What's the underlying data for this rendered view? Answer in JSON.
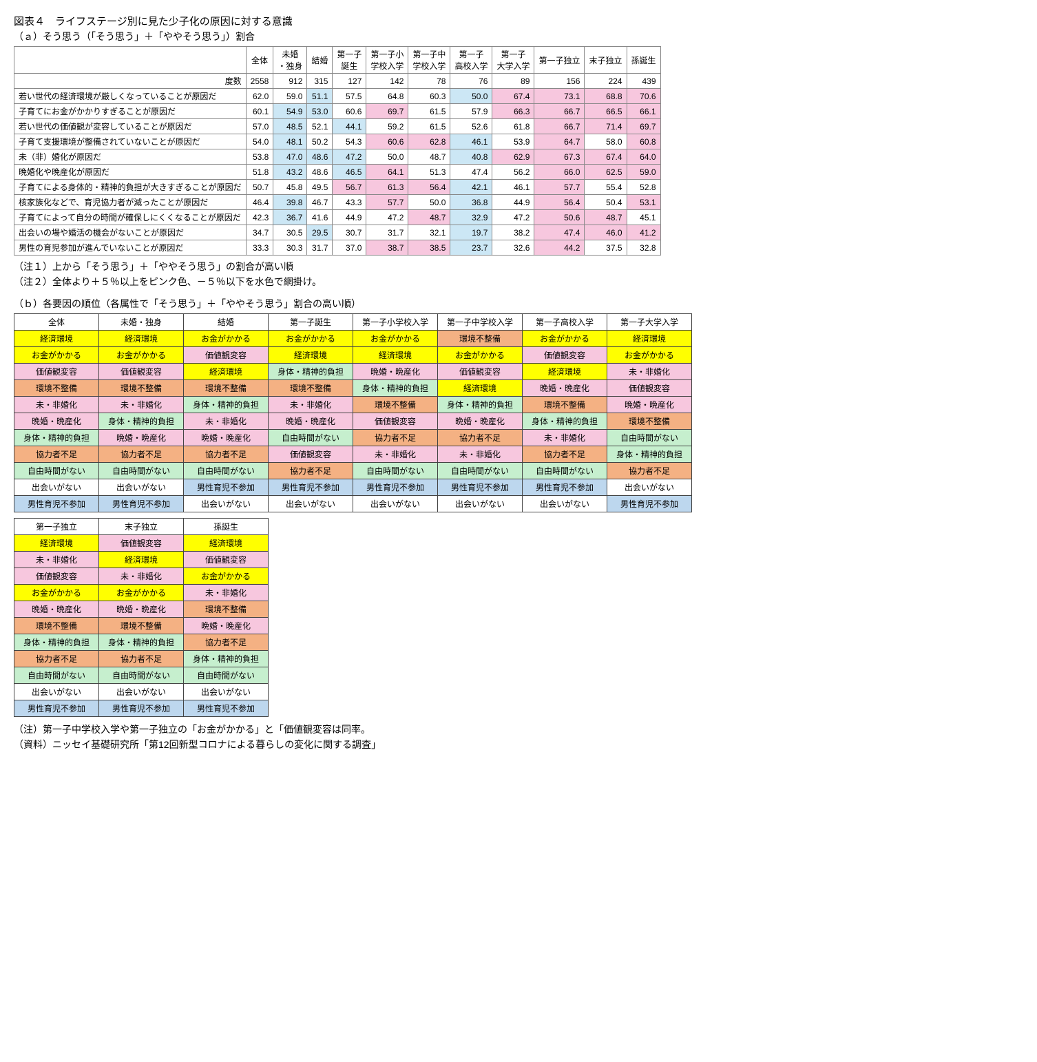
{
  "title": "図表４　ライフステージ別に見た少子化の原因に対する意識",
  "subtitleA": "（ａ）そう思う（「そう思う」＋「ややそう思う」）割合",
  "subtitleB": "（ｂ）各要因の順位（各属性で「そう思う」＋「ややそう思う」割合の高い順）",
  "noteA1": "（注１）上から「そう思う」＋「ややそう思う」の割合が高い順",
  "noteA2": "（注２）全体より＋５％以上をピンク色、－５％以下を水色で網掛け。",
  "noteB1": "（注）第一子中学校入学や第一子独立の「お金がかかる」と「価値観変容は同率。",
  "noteB2": "（資料）ニッセイ基礎研究所「第12回新型コロナによる暮らしの変化に関する調査」",
  "tableA": {
    "headers": [
      "",
      "全体",
      "未婚・独身",
      "結婚",
      "第一子誕生",
      "第一子小学校入学",
      "第一子中学校入学",
      "第一子高校入学",
      "第一子大学入学",
      "第一子独立",
      "末子独立",
      "孫誕生"
    ],
    "countLabel": "度数",
    "counts": [
      2558,
      912,
      315,
      127,
      142,
      78,
      76,
      89,
      156,
      224,
      439
    ],
    "rows": [
      {
        "label": "若い世代の経済環境が厳しくなっていることが原因だ",
        "vals": [
          62.0,
          59.0,
          51.1,
          57.5,
          64.8,
          60.3,
          50.0,
          67.4,
          73.1,
          68.8,
          70.6
        ],
        "hl": [
          "",
          "",
          "b",
          "",
          "",
          "",
          "b",
          "p",
          "p",
          "p",
          "p"
        ]
      },
      {
        "label": "子育てにお金がかかりすぎることが原因だ",
        "vals": [
          60.1,
          54.9,
          53.0,
          60.6,
          69.7,
          61.5,
          57.9,
          66.3,
          66.7,
          66.5,
          66.1
        ],
        "hl": [
          "",
          "b",
          "b",
          "",
          "p",
          "",
          "",
          "p",
          "p",
          "p",
          "p"
        ]
      },
      {
        "label": "若い世代の価値観が変容していることが原因だ",
        "vals": [
          57.0,
          48.5,
          52.1,
          44.1,
          59.2,
          61.5,
          52.6,
          61.8,
          66.7,
          71.4,
          69.7
        ],
        "hl": [
          "",
          "b",
          "",
          "b",
          "",
          "",
          "",
          "",
          "p",
          "p",
          "p"
        ]
      },
      {
        "label": "子育て支援環境が整備されていないことが原因だ",
        "vals": [
          54.0,
          48.1,
          50.2,
          54.3,
          60.6,
          62.8,
          46.1,
          53.9,
          64.7,
          58.0,
          60.8
        ],
        "hl": [
          "",
          "b",
          "",
          "",
          "p",
          "p",
          "b",
          "",
          "p",
          "",
          "p"
        ]
      },
      {
        "label": "未（非）婚化が原因だ",
        "vals": [
          53.8,
          47.0,
          48.6,
          47.2,
          50.0,
          48.7,
          40.8,
          62.9,
          67.3,
          67.4,
          64.0
        ],
        "hl": [
          "",
          "b",
          "b",
          "b",
          "",
          "",
          "b",
          "p",
          "p",
          "p",
          "p"
        ]
      },
      {
        "label": "晩婚化や晩産化が原因だ",
        "vals": [
          51.8,
          43.2,
          48.6,
          46.5,
          64.1,
          51.3,
          47.4,
          56.2,
          66.0,
          62.5,
          59.0
        ],
        "hl": [
          "",
          "b",
          "",
          "b",
          "p",
          "",
          "",
          "",
          "p",
          "p",
          "p"
        ]
      },
      {
        "label": "子育てによる身体的・精神的負担が大きすぎることが原因だ",
        "vals": [
          50.7,
          45.8,
          49.5,
          56.7,
          61.3,
          56.4,
          42.1,
          46.1,
          57.7,
          55.4,
          52.8
        ],
        "hl": [
          "",
          "",
          "",
          "p",
          "p",
          "p",
          "b",
          "",
          "p",
          "",
          ""
        ]
      },
      {
        "label": "核家族化などで、育児協力者が減ったことが原因だ",
        "vals": [
          46.4,
          39.8,
          46.7,
          43.3,
          57.7,
          50.0,
          36.8,
          44.9,
          56.4,
          50.4,
          53.1
        ],
        "hl": [
          "",
          "b",
          "",
          "",
          "p",
          "",
          "b",
          "",
          "p",
          "",
          "p"
        ]
      },
      {
        "label": "子育てによって自分の時間が確保しにくくなることが原因だ",
        "vals": [
          42.3,
          36.7,
          41.6,
          44.9,
          47.2,
          48.7,
          32.9,
          47.2,
          50.6,
          48.7,
          45.1
        ],
        "hl": [
          "",
          "b",
          "",
          "",
          "",
          "p",
          "b",
          "",
          "p",
          "p",
          ""
        ]
      },
      {
        "label": "出会いの場や婚活の機会がないことが原因だ",
        "vals": [
          34.7,
          30.5,
          29.5,
          30.7,
          31.7,
          32.1,
          19.7,
          38.2,
          47.4,
          46.0,
          41.2
        ],
        "hl": [
          "",
          "",
          "b",
          "",
          "",
          "",
          "b",
          "",
          "p",
          "p",
          "p"
        ]
      },
      {
        "label": "男性の育児参加が進んでいないことが原因だ",
        "vals": [
          33.3,
          30.3,
          31.7,
          37.0,
          38.7,
          38.5,
          23.7,
          32.6,
          44.2,
          37.5,
          32.8
        ],
        "hl": [
          "",
          "",
          "",
          "",
          "p",
          "p",
          "b",
          "",
          "p",
          "",
          ""
        ]
      }
    ]
  },
  "factorColors": {
    "経済環境": "c-yellow",
    "お金がかかる": "c-yellow",
    "価値観変容": "c-pink",
    "環境不整備": "c-orange",
    "未・非婚化": "c-pink",
    "晩婚・晩産化": "c-pink",
    "身体・精神的負担": "c-lgreen",
    "協力者不足": "c-orange",
    "自由時間がない": "c-lgreen",
    "出会いがない": "",
    "男性育児不参加": "c-lblue"
  },
  "tableB1": {
    "headers": [
      "全体",
      "未婚・独身",
      "結婚",
      "第一子誕生",
      "第一子小学校入学",
      "第一子中学校入学",
      "第一子高校入学",
      "第一子大学入学"
    ],
    "rows": [
      [
        "経済環境",
        "経済環境",
        "お金がかかる",
        "お金がかかる",
        "お金がかかる",
        "環境不整備",
        "お金がかかる",
        "経済環境"
      ],
      [
        "お金がかかる",
        "お金がかかる",
        "価値観変容",
        "経済環境",
        "経済環境",
        "お金がかかる",
        "価値観変容",
        "お金がかかる"
      ],
      [
        "価値観変容",
        "価値観変容",
        "経済環境",
        "身体・精神的負担",
        "晩婚・晩産化",
        "価値観変容",
        "経済環境",
        "未・非婚化"
      ],
      [
        "環境不整備",
        "環境不整備",
        "環境不整備",
        "環境不整備",
        "身体・精神的負担",
        "経済環境",
        "晩婚・晩産化",
        "価値観変容"
      ],
      [
        "未・非婚化",
        "未・非婚化",
        "身体・精神的負担",
        "未・非婚化",
        "環境不整備",
        "身体・精神的負担",
        "環境不整備",
        "晩婚・晩産化"
      ],
      [
        "晩婚・晩産化",
        "身体・精神的負担",
        "未・非婚化",
        "晩婚・晩産化",
        "価値観変容",
        "晩婚・晩産化",
        "身体・精神的負担",
        "環境不整備"
      ],
      [
        "身体・精神的負担",
        "晩婚・晩産化",
        "晩婚・晩産化",
        "自由時間がない",
        "協力者不足",
        "協力者不足",
        "未・非婚化",
        "自由時間がない"
      ],
      [
        "協力者不足",
        "協力者不足",
        "協力者不足",
        "価値観変容",
        "未・非婚化",
        "未・非婚化",
        "協力者不足",
        "身体・精神的負担"
      ],
      [
        "自由時間がない",
        "自由時間がない",
        "自由時間がない",
        "協力者不足",
        "自由時間がない",
        "自由時間がない",
        "自由時間がない",
        "協力者不足"
      ],
      [
        "出会いがない",
        "出会いがない",
        "男性育児不参加",
        "男性育児不参加",
        "男性育児不参加",
        "男性育児不参加",
        "男性育児不参加",
        "出会いがない"
      ],
      [
        "男性育児不参加",
        "男性育児不参加",
        "出会いがない",
        "出会いがない",
        "出会いがない",
        "出会いがない",
        "出会いがない",
        "男性育児不参加"
      ]
    ]
  },
  "tableB2": {
    "headers": [
      "第一子独立",
      "末子独立",
      "孫誕生"
    ],
    "rows": [
      [
        "経済環境",
        "価値観変容",
        "経済環境"
      ],
      [
        "未・非婚化",
        "経済環境",
        "価値観変容"
      ],
      [
        "価値観変容",
        "未・非婚化",
        "お金がかかる"
      ],
      [
        "お金がかかる",
        "お金がかかる",
        "未・非婚化"
      ],
      [
        "晩婚・晩産化",
        "晩婚・晩産化",
        "環境不整備"
      ],
      [
        "環境不整備",
        "環境不整備",
        "晩婚・晩産化"
      ],
      [
        "身体・精神的負担",
        "身体・精神的負担",
        "協力者不足"
      ],
      [
        "協力者不足",
        "協力者不足",
        "身体・精神的負担"
      ],
      [
        "自由時間がない",
        "自由時間がない",
        "自由時間がない"
      ],
      [
        "出会いがない",
        "出会いがない",
        "出会いがない"
      ],
      [
        "男性育児不参加",
        "男性育児不参加",
        "男性育児不参加"
      ]
    ]
  }
}
